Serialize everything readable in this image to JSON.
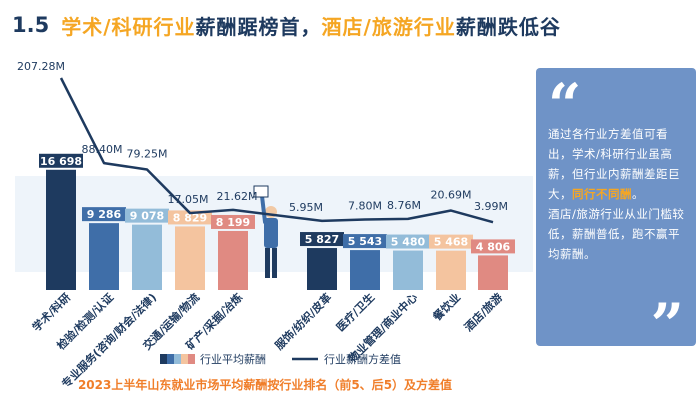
{
  "header": {
    "section_no": "1.5",
    "title_part1": "学术/科研行业",
    "title_part2": "薪酬踞榜首，",
    "title_part3": "酒店/旅游行业",
    "title_part4": "薪酬跌低谷"
  },
  "panel": {
    "open_quote": "“",
    "close_quote": "”",
    "line1": "通过各行业方差值可看出，学术/科研行业虽高薪，但行业内薪酬差距巨大，",
    "highlight": "同行不同酬",
    "line1_end": "。",
    "line2": "酒店/旅游行业从业门槛较低，薪酬普低，跑不赢平均薪酬。"
  },
  "caption": "2023上半年山东就业市场平均薪酬按行业排名（前5、后5）及方差值",
  "colors": {
    "title": "#1e3a5f",
    "accent": "#f5a623",
    "line": "#1e3a5f",
    "panel": "#6f93c7",
    "caption": "#f07e2a"
  },
  "chart_data": {
    "type": "bar",
    "title": "2023上半年山东就业市场平均薪酬按行业排名（前5、后5）及方差值",
    "categories": [
      "学术/科研",
      "检验/检测/认证",
      "专业服务(咨询/财会/法律)",
      "交通/运输/物流",
      "矿产/采掘/冶炼",
      "服饰/纺织/皮革",
      "医疗/卫生",
      "物业管理/商业中心",
      "餐饮业",
      "酒店/旅游"
    ],
    "series": [
      {
        "name": "行业平均薪酬",
        "type": "bar",
        "values": [
          16698,
          9286,
          9078,
          8829,
          8199,
          5827,
          5543,
          5480,
          5468,
          4806
        ],
        "labels": [
          "16 698",
          "9 286",
          "9 078",
          "8 829",
          "8 199",
          "5 827",
          "5 543",
          "5 480",
          "5 468",
          "4 806"
        ],
        "colors": [
          "#1e3a5f",
          "#3f6ea8",
          "#93bcd9",
          "#f4c49f",
          "#e08a82",
          "#1e3a5f",
          "#3f6ea8",
          "#93bcd9",
          "#f4c49f",
          "#e08a82"
        ]
      },
      {
        "name": "行业薪酬方差值",
        "type": "line",
        "values": [
          207.28,
          88.4,
          79.25,
          17.05,
          21.62,
          5.95,
          7.8,
          8.76,
          20.69,
          3.99
        ],
        "labels": [
          "207.28M",
          "88.40M",
          "79.25M",
          "17.05M",
          "21.62M",
          "5.95M",
          "7.80M",
          "8.76M",
          "20.69M",
          "3.99M"
        ]
      }
    ],
    "legend": [
      {
        "name": "行业平均薪酬",
        "kind": "bar"
      },
      {
        "name": "行业薪酬方差值",
        "kind": "line"
      }
    ],
    "legend_position": "bottom"
  }
}
